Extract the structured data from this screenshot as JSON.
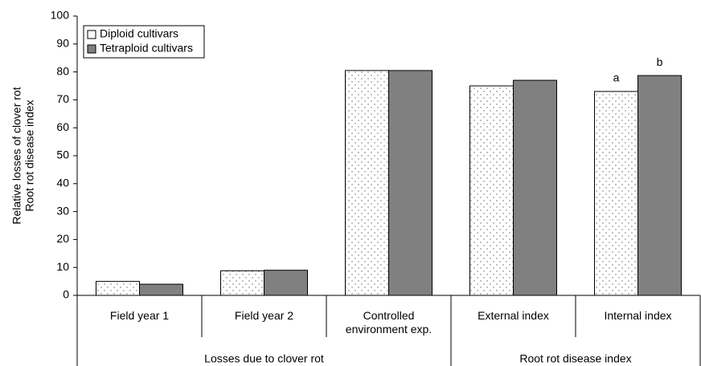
{
  "chart_data": {
    "type": "bar",
    "ylabel": [
      "Relative losses of clover rot",
      "Root rot disease index"
    ],
    "categories": [
      "Field year 1",
      "Field year 2",
      "Controlled environment exp.",
      "External index",
      "Internal index"
    ],
    "groups": [
      {
        "label": "Losses due to clover rot",
        "members": [
          "Field year 1",
          "Field year 2",
          "Controlled environment exp."
        ]
      },
      {
        "label": "Root rot disease index",
        "members": [
          "External index",
          "Internal index"
        ]
      }
    ],
    "series": [
      {
        "name": "Diploid cultivars",
        "color": "#ffffff",
        "pattern": "dots",
        "values": [
          5,
          8.8,
          80.5,
          75,
          73
        ]
      },
      {
        "name": "Tetraploid cultivars",
        "color": "#808080",
        "values": [
          4,
          9,
          80.5,
          77,
          78.7
        ]
      }
    ],
    "annotations": [
      {
        "text": "a",
        "category": "Internal index",
        "series": "Diploid cultivars"
      },
      {
        "text": "b",
        "category": "Internal index",
        "series": "Tetraploid cultivars"
      }
    ],
    "ylim": [
      0,
      100
    ],
    "yticks": [
      0,
      10,
      20,
      30,
      40,
      50,
      60,
      70,
      80,
      90,
      100
    ],
    "legend": "top-left",
    "grid": false
  }
}
